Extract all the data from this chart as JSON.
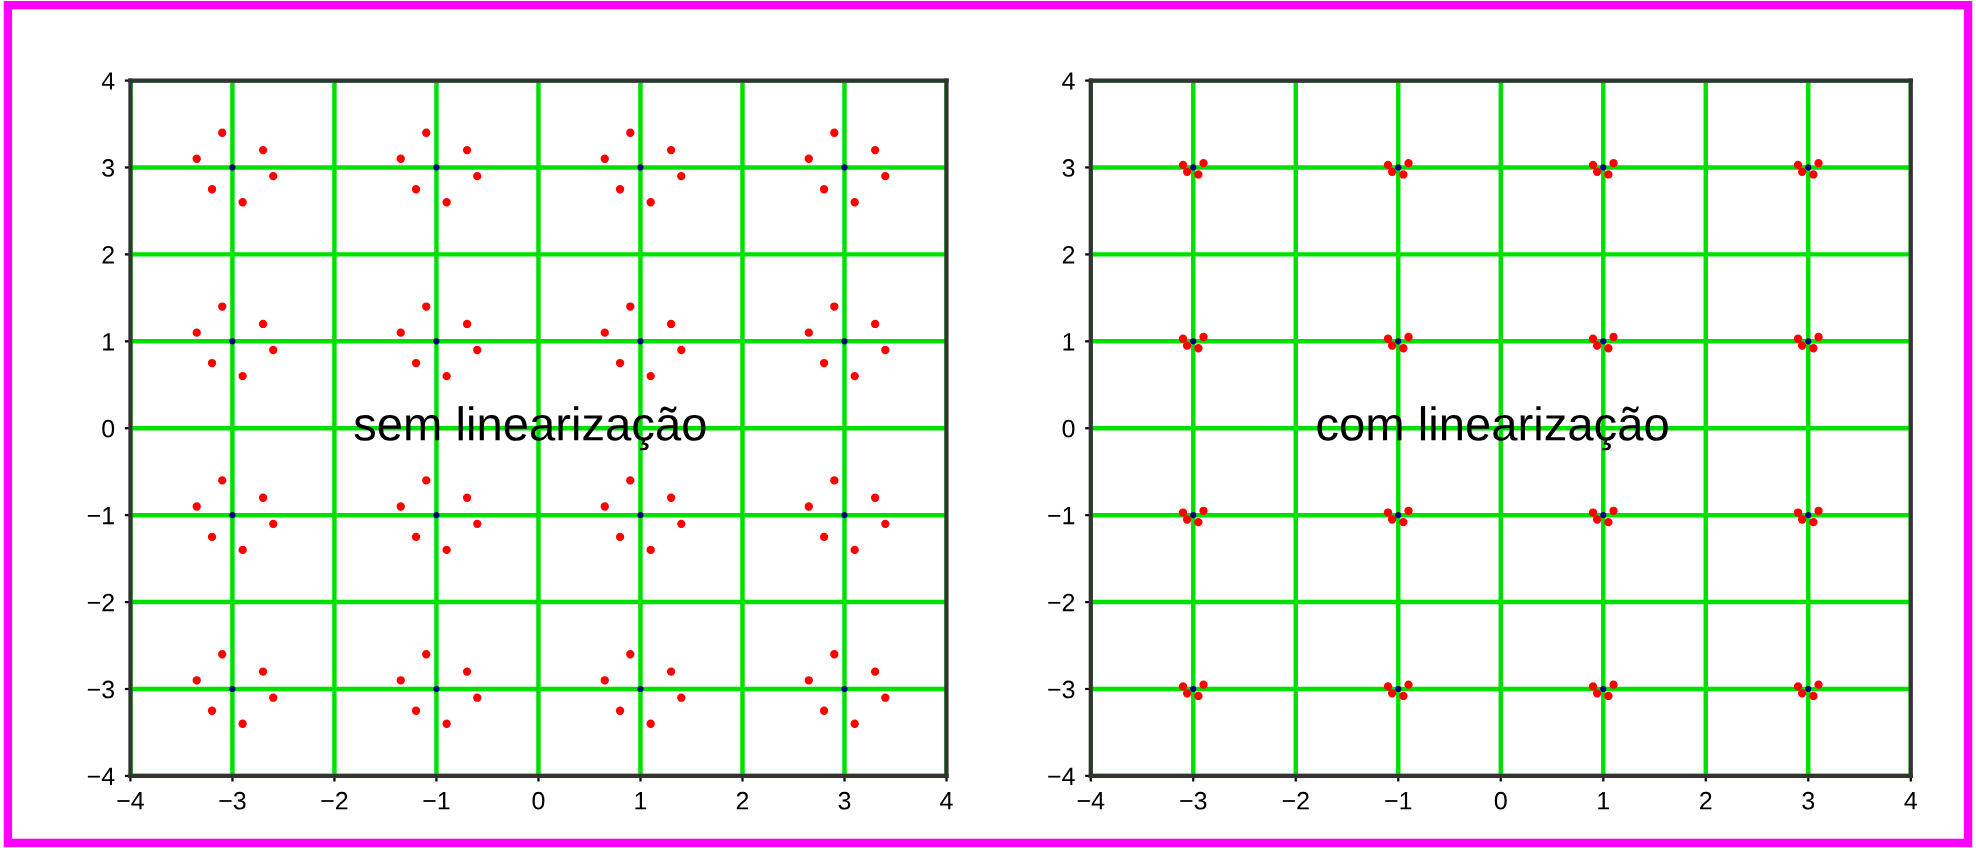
{
  "chart_data": [
    {
      "type": "scatter",
      "xlim": [
        -4,
        4
      ],
      "ylim": [
        -4,
        4
      ],
      "xticks": [
        -4,
        -2,
        0,
        2,
        4,
        {
          "value": -3,
          "label": "−3"
        },
        {
          "value": -1,
          "label": "−1"
        },
        {
          "value": 1,
          "label": "1"
        },
        {
          "value": 3,
          "label": "3"
        }
      ],
      "yticks": [
        -4,
        -3,
        -2,
        -1,
        0,
        1,
        2,
        3,
        4
      ],
      "grid": true,
      "marker": "circle",
      "annotations": [
        "sem linearização"
      ],
      "series": [
        {
          "color": "#ff0000",
          "x": [
            -2.7,
            -3.35,
            -2.9,
            -3.2,
            -2.6,
            -3.1,
            -0.7,
            -1.35,
            -0.9,
            -1.2,
            -0.6,
            -1.1,
            1.3,
            0.65,
            1.1,
            0.8,
            1.4,
            0.9,
            3.3,
            2.65,
            3.1,
            2.8,
            3.4,
            2.9,
            -2.7,
            -3.35,
            -2.9,
            -3.2,
            -2.6,
            -3.1,
            -0.7,
            -1.35,
            -0.9,
            -1.2,
            -0.6,
            -1.1,
            1.3,
            0.65,
            1.1,
            0.8,
            1.4,
            0.9,
            3.3,
            2.65,
            3.1,
            2.8,
            3.4,
            2.9,
            -2.7,
            -3.35,
            -2.9,
            -3.2,
            -2.6,
            -3.1,
            -0.7,
            -1.35,
            -0.9,
            -1.2,
            -0.6,
            -1.1,
            1.3,
            0.65,
            1.1,
            0.8,
            1.4,
            0.9,
            3.3,
            2.65,
            3.1,
            2.8,
            3.4,
            2.9,
            -2.7,
            -3.35,
            -2.9,
            -3.2,
            -2.6,
            -3.1,
            -0.7,
            -1.35,
            -0.9,
            -1.2,
            -0.6,
            -1.1,
            1.3,
            0.65,
            1.1,
            0.8,
            1.4,
            0.9,
            3.3,
            2.65,
            3.1,
            2.8,
            3.4,
            2.9
          ],
          "values": [
            3.2,
            3.1,
            2.6,
            2.75,
            2.9,
            3.4,
            3.2,
            3.1,
            2.6,
            2.75,
            2.9,
            3.4,
            3.2,
            3.1,
            2.6,
            2.75,
            2.9,
            3.4,
            3.2,
            3.1,
            2.6,
            2.75,
            2.9,
            3.4,
            1.2,
            1.1,
            0.6,
            0.75,
            0.9,
            1.4,
            1.2,
            1.1,
            0.6,
            0.75,
            0.9,
            1.4,
            1.2,
            1.1,
            0.6,
            0.75,
            0.9,
            1.4,
            1.2,
            1.1,
            0.6,
            0.75,
            0.9,
            1.4,
            -0.8,
            -0.9,
            -1.4,
            -1.25,
            -1.1,
            -0.6,
            -0.8,
            -0.9,
            -1.4,
            -1.25,
            -1.1,
            -0.6,
            -0.8,
            -0.9,
            -1.4,
            -1.25,
            -1.1,
            -0.6,
            -0.8,
            -0.9,
            -1.4,
            -1.25,
            -1.1,
            -0.6,
            -2.8,
            -2.9,
            -3.4,
            -3.25,
            -3.1,
            -2.6,
            -2.8,
            -2.9,
            -3.4,
            -3.25,
            -3.1,
            -2.6,
            -2.8,
            -2.9,
            -3.4,
            -3.25,
            -3.1,
            -2.6,
            -2.8,
            -2.9,
            -3.4,
            -3.25,
            -3.1,
            -2.6
          ]
        },
        {
          "color": "#000080",
          "x": [
            -3,
            -1,
            1,
            3,
            -3,
            -1,
            1,
            3,
            -3,
            -1,
            1,
            3,
            -3,
            -1,
            1,
            3
          ],
          "values": [
            3,
            3,
            3,
            3,
            1,
            1,
            1,
            1,
            -1,
            -1,
            -1,
            -1,
            -3,
            -3,
            -3,
            -3
          ]
        }
      ]
    },
    {
      "type": "scatter",
      "xlim": [
        -4,
        4
      ],
      "ylim": [
        -4,
        4
      ],
      "xticks": [
        -4,
        -2,
        0,
        2,
        4,
        {
          "value": -3,
          "label": "−3"
        },
        {
          "value": -1,
          "label": "−1"
        },
        {
          "value": 1,
          "label": "1"
        },
        {
          "value": 3,
          "label": "3"
        }
      ],
      "yticks": [
        -4,
        -3,
        -2,
        -1,
        0,
        1,
        2,
        3,
        4
      ],
      "grid": true,
      "marker": "circle",
      "annotations": [
        "com linearização"
      ],
      "series": [
        {
          "color": "#ff0000",
          "x": [
            -2.9,
            -3.1,
            -2.95,
            -3.06,
            -0.9,
            -1.1,
            -0.95,
            -1.06,
            1.1,
            0.9,
            1.05,
            0.94,
            3.1,
            2.9,
            3.05,
            2.94,
            -2.9,
            -3.1,
            -2.95,
            -3.06,
            -0.9,
            -1.1,
            -0.95,
            -1.06,
            1.1,
            0.9,
            1.05,
            0.94,
            3.1,
            2.9,
            3.05,
            2.94,
            -2.9,
            -3.1,
            -2.95,
            -3.06,
            -0.9,
            -1.1,
            -0.95,
            -1.06,
            1.1,
            0.9,
            1.05,
            0.94,
            3.1,
            2.9,
            3.05,
            2.94,
            -2.9,
            -3.1,
            -2.95,
            -3.06,
            -0.9,
            -1.1,
            -0.95,
            -1.06,
            1.1,
            0.9,
            1.05,
            0.94,
            3.1,
            2.9,
            3.05,
            2.94
          ],
          "values": [
            3.05,
            3.03,
            2.92,
            2.95,
            3.05,
            3.03,
            2.92,
            2.95,
            3.05,
            3.03,
            2.92,
            2.95,
            3.05,
            3.03,
            2.92,
            2.95,
            1.05,
            1.03,
            0.92,
            0.95,
            1.05,
            1.03,
            0.92,
            0.95,
            1.05,
            1.03,
            0.92,
            0.95,
            1.05,
            1.03,
            0.92,
            0.95,
            -0.95,
            -0.97,
            -1.08,
            -1.05,
            -0.95,
            -0.97,
            -1.08,
            -1.05,
            -0.95,
            -0.97,
            -1.08,
            -1.05,
            -0.95,
            -0.97,
            -1.08,
            -1.05,
            -2.95,
            -2.97,
            -3.08,
            -3.05,
            -2.95,
            -2.97,
            -3.08,
            -3.05,
            -2.95,
            -2.97,
            -3.08,
            -3.05,
            -2.95,
            -2.97,
            -3.08,
            -3.05
          ]
        },
        {
          "color": "#000080",
          "x": [
            -3,
            -1,
            1,
            3,
            -3,
            -1,
            1,
            3,
            -3,
            -1,
            1,
            3,
            -3,
            -1,
            1,
            3
          ],
          "values": [
            3,
            3,
            3,
            3,
            1,
            1,
            1,
            1,
            -1,
            -1,
            -1,
            -1,
            -3,
            -3,
            -3,
            -3
          ]
        }
      ]
    }
  ]
}
